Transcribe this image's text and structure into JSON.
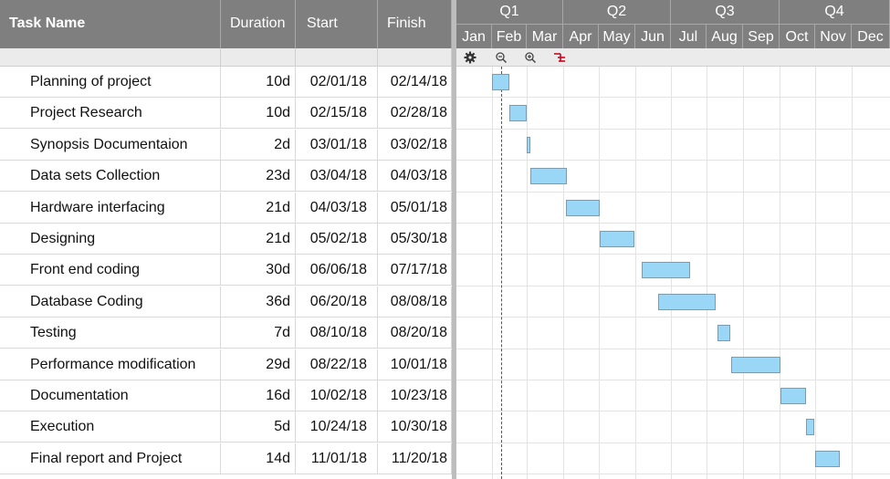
{
  "columns": {
    "task_name": "Task Name",
    "duration": "Duration",
    "start": "Start",
    "finish": "Finish"
  },
  "timeline": {
    "quarters": [
      "Q1",
      "Q2",
      "Q3",
      "Q4"
    ],
    "months": [
      "Jan",
      "Feb",
      "Mar",
      "Apr",
      "May",
      "Jun",
      "Jul",
      "Aug",
      "Sep",
      "Oct",
      "Nov",
      "Dec"
    ]
  },
  "toolbar": {
    "icons": [
      "gear-icon",
      "zoom-out-icon",
      "zoom-in-icon",
      "critical-path-icon"
    ]
  },
  "colors": {
    "header_bg": "#7f7f7f",
    "bar_fill": "#9ad6f5",
    "bar_border": "#7a9bb0"
  },
  "chart_data": {
    "type": "gantt",
    "year": 2018,
    "today_marker": "2018-02-08",
    "tasks": [
      {
        "name": "Planning of project",
        "duration": "10d",
        "start": "02/01/18",
        "finish": "02/14/18"
      },
      {
        "name": "Project Research",
        "duration": "10d",
        "start": "02/15/18",
        "finish": "02/28/18"
      },
      {
        "name": "Synopsis Documentaion",
        "duration": "2d",
        "start": "03/01/18",
        "finish": "03/02/18"
      },
      {
        "name": "Data sets Collection",
        "duration": "23d",
        "start": "03/04/18",
        "finish": "04/03/18"
      },
      {
        "name": "Hardware interfacing",
        "duration": "21d",
        "start": "04/03/18",
        "finish": "05/01/18"
      },
      {
        "name": "Designing",
        "duration": "21d",
        "start": "05/02/18",
        "finish": "05/30/18"
      },
      {
        "name": "Front end coding",
        "duration": "30d",
        "start": "06/06/18",
        "finish": "07/17/18"
      },
      {
        "name": "Database Coding",
        "duration": "36d",
        "start": "06/20/18",
        "finish": "08/08/18"
      },
      {
        "name": "Testing",
        "duration": "7d",
        "start": "08/10/18",
        "finish": "08/20/18"
      },
      {
        "name": "Performance modification",
        "duration": "29d",
        "start": "08/22/18",
        "finish": "10/01/18"
      },
      {
        "name": "Documentation",
        "duration": "16d",
        "start": "10/02/18",
        "finish": "10/23/18"
      },
      {
        "name": "Execution",
        "duration": "5d",
        "start": "10/24/18",
        "finish": "10/30/18"
      },
      {
        "name": "Final report and Project",
        "duration": "14d",
        "start": "11/01/18",
        "finish": "11/20/18"
      }
    ]
  }
}
